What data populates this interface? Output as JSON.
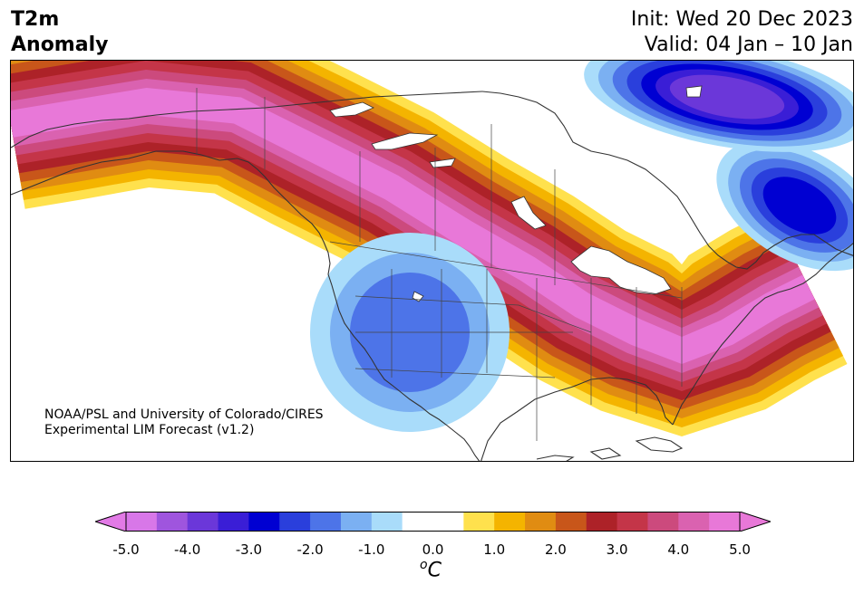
{
  "title": {
    "left_line1": "T2m",
    "left_line2": "Anomaly",
    "init": "Init: Wed 20 Dec 2023",
    "valid": "Valid: 04 Jan – 10 Jan"
  },
  "credit": {
    "line1": "NOAA/PSL and University of Colorado/CIRES",
    "line2": "Experimental LIM Forecast (v1.2)"
  },
  "colorbar": {
    "unit_base": "C",
    "unit_sup": "o",
    "ticks": [
      "-5.0",
      "-4.0",
      "-3.0",
      "-2.0",
      "-1.0",
      "0.0",
      "1.0",
      "2.0",
      "3.0",
      "4.0",
      "5.0"
    ],
    "colors": [
      "#d877e8",
      "#9f55de",
      "#6b37d9",
      "#3a1ed6",
      "#0000d2",
      "#2a3fdc",
      "#4d74e8",
      "#7bb0f2",
      "#a9dcfa",
      "#ffffff",
      "#ffffff",
      "#ffe14d",
      "#f4b400",
      "#e08c12",
      "#c8561a",
      "#ad2228",
      "#c43548",
      "#cc4a7d",
      "#da62b0",
      "#e878d8"
    ],
    "under_color": "#e27ae6",
    "over_color": "#e878d8"
  },
  "map": {
    "warm_colors": [
      "#ffe14d",
      "#f4b400",
      "#e08c12",
      "#c8561a",
      "#ad2228",
      "#c43548",
      "#cc4a7d",
      "#da62b0",
      "#e878d8"
    ],
    "cold_colors": [
      "#a9dcfa",
      "#7bb0f2",
      "#4d74e8",
      "#2a3fdc",
      "#0000d2",
      "#3a1ed6",
      "#6b37d9"
    ]
  }
}
